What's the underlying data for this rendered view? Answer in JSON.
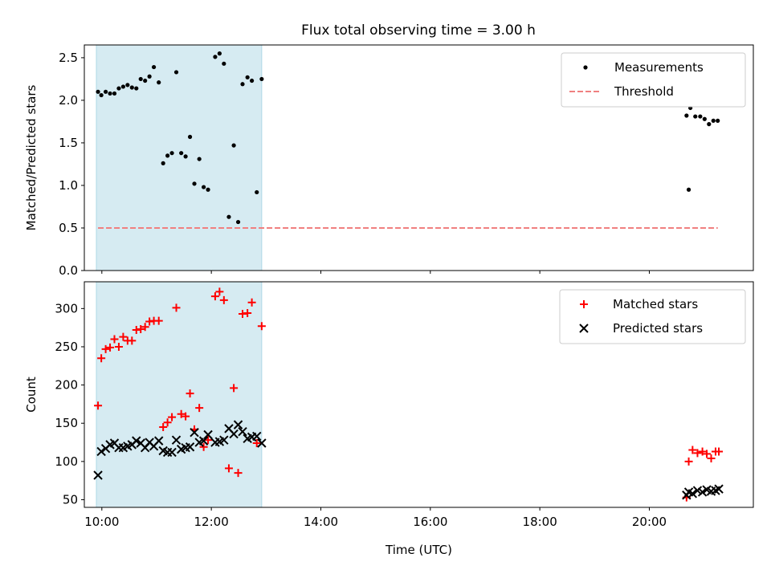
{
  "figure_title": "Flux total observing time = 3.00 h",
  "chart_data": [
    {
      "type": "scatter",
      "ylabel": "Matched/Predicted stars",
      "xlabel": "",
      "xlim_hours": [
        9.68,
        21.9
      ],
      "ylim": [
        0,
        2.65
      ],
      "y_ticks": [
        0.0,
        0.5,
        1.0,
        1.5,
        2.0,
        2.5
      ],
      "y_tick_labels": [
        "0.0",
        "0.5",
        "1.0",
        "1.5",
        "2.0",
        "2.5"
      ],
      "x_ticks_hours": [
        10,
        12,
        14,
        16,
        18,
        20
      ],
      "shaded_region_hours": [
        9.9,
        12.92
      ],
      "shaded_color": "#add8e6",
      "legend_position": "upper right",
      "series": [
        {
          "name": "Measurements",
          "marker": "dot",
          "color": "#000000",
          "points": [
            [
              9.93,
              2.1
            ],
            [
              9.99,
              2.06
            ],
            [
              10.07,
              2.1
            ],
            [
              10.15,
              2.08
            ],
            [
              10.23,
              2.08
            ],
            [
              10.31,
              2.14
            ],
            [
              10.39,
              2.16
            ],
            [
              10.47,
              2.18
            ],
            [
              10.55,
              2.15
            ],
            [
              10.63,
              2.14
            ],
            [
              10.71,
              2.25
            ],
            [
              10.79,
              2.23
            ],
            [
              10.87,
              2.28
            ],
            [
              10.95,
              2.39
            ],
            [
              11.04,
              2.21
            ],
            [
              11.12,
              1.26
            ],
            [
              11.2,
              1.35
            ],
            [
              11.28,
              1.38
            ],
            [
              11.36,
              2.33
            ],
            [
              11.45,
              1.38
            ],
            [
              11.53,
              1.34
            ],
            [
              11.61,
              1.57
            ],
            [
              11.69,
              1.02
            ],
            [
              11.78,
              1.31
            ],
            [
              11.86,
              0.98
            ],
            [
              11.94,
              0.95
            ],
            [
              12.07,
              2.51
            ],
            [
              12.15,
              2.55
            ],
            [
              12.23,
              2.43
            ],
            [
              12.32,
              0.63
            ],
            [
              12.41,
              1.47
            ],
            [
              12.49,
              0.57
            ],
            [
              12.57,
              2.19
            ],
            [
              12.66,
              2.27
            ],
            [
              12.74,
              2.23
            ],
            [
              12.83,
              0.92
            ],
            [
              12.92,
              2.25
            ],
            [
              20.68,
              1.82
            ],
            [
              20.72,
              0.95
            ],
            [
              20.75,
              1.91
            ],
            [
              20.84,
              1.81
            ],
            [
              20.93,
              1.81
            ],
            [
              21.01,
              1.78
            ],
            [
              21.09,
              1.72
            ],
            [
              21.17,
              1.76
            ],
            [
              21.25,
              1.76
            ]
          ]
        },
        {
          "name": "Threshold",
          "style": "dashed",
          "color": "#f08080",
          "points": [
            [
              9.93,
              0.5
            ],
            [
              21.25,
              0.5
            ]
          ]
        }
      ]
    },
    {
      "type": "scatter",
      "ylabel": "Count",
      "xlabel": "Time (UTC)",
      "xlim_hours": [
        9.68,
        21.9
      ],
      "ylim": [
        40,
        335
      ],
      "y_ticks": [
        50,
        100,
        150,
        200,
        250,
        300
      ],
      "y_tick_labels": [
        "50",
        "100",
        "150",
        "200",
        "250",
        "300"
      ],
      "x_ticks_hours": [
        10,
        12,
        14,
        16,
        18,
        20
      ],
      "x_tick_labels": [
        "10:00",
        "12:00",
        "14:00",
        "16:00",
        "18:00",
        "20:00"
      ],
      "shaded_region_hours": [
        9.9,
        12.92
      ],
      "shaded_color": "#add8e6",
      "legend_position": "upper right",
      "series": [
        {
          "name": "Matched stars",
          "marker": "plus",
          "color": "#ff0000",
          "points": [
            [
              9.93,
              173
            ],
            [
              9.99,
              235
            ],
            [
              10.07,
              247
            ],
            [
              10.15,
              249
            ],
            [
              10.23,
              260
            ],
            [
              10.31,
              250
            ],
            [
              10.39,
              263
            ],
            [
              10.47,
              258
            ],
            [
              10.55,
              258
            ],
            [
              10.63,
              272
            ],
            [
              10.71,
              273
            ],
            [
              10.79,
              276
            ],
            [
              10.87,
              283
            ],
            [
              10.95,
              284
            ],
            [
              11.04,
              284
            ],
            [
              11.12,
              145
            ],
            [
              11.2,
              151
            ],
            [
              11.28,
              158
            ],
            [
              11.36,
              301
            ],
            [
              11.45,
              162
            ],
            [
              11.53,
              159
            ],
            [
              11.61,
              189
            ],
            [
              11.69,
              142
            ],
            [
              11.78,
              170
            ],
            [
              11.86,
              119
            ],
            [
              11.94,
              128
            ],
            [
              12.07,
              316
            ],
            [
              12.15,
              322
            ],
            [
              12.23,
              311
            ],
            [
              12.32,
              91
            ],
            [
              12.41,
              196
            ],
            [
              12.49,
              85
            ],
            [
              12.57,
              293
            ],
            [
              12.66,
              294
            ],
            [
              12.74,
              308
            ],
            [
              12.83,
              124
            ],
            [
              12.92,
              277
            ],
            [
              20.68,
              53
            ],
            [
              20.72,
              100
            ],
            [
              20.79,
              115
            ],
            [
              20.88,
              111
            ],
            [
              20.97,
              113
            ],
            [
              21.05,
              110
            ],
            [
              21.13,
              104
            ],
            [
              21.21,
              113
            ],
            [
              21.27,
              113
            ]
          ]
        },
        {
          "name": "Predicted stars",
          "marker": "x",
          "color": "#000000",
          "points": [
            [
              9.93,
              82
            ],
            [
              9.99,
              113
            ],
            [
              10.07,
              117
            ],
            [
              10.15,
              122
            ],
            [
              10.23,
              124
            ],
            [
              10.31,
              118
            ],
            [
              10.39,
              118
            ],
            [
              10.47,
              120
            ],
            [
              10.55,
              122
            ],
            [
              10.63,
              127
            ],
            [
              10.71,
              124
            ],
            [
              10.79,
              118
            ],
            [
              10.87,
              125
            ],
            [
              10.95,
              120
            ],
            [
              11.04,
              127
            ],
            [
              11.12,
              114
            ],
            [
              11.2,
              112
            ],
            [
              11.28,
              112
            ],
            [
              11.36,
              128
            ],
            [
              11.45,
              116
            ],
            [
              11.53,
              118
            ],
            [
              11.61,
              119
            ],
            [
              11.69,
              138
            ],
            [
              11.78,
              125
            ],
            [
              11.86,
              127
            ],
            [
              11.94,
              135
            ],
            [
              12.07,
              125
            ],
            [
              12.15,
              126
            ],
            [
              12.23,
              128
            ],
            [
              12.32,
              143
            ],
            [
              12.41,
              136
            ],
            [
              12.49,
              148
            ],
            [
              12.57,
              139
            ],
            [
              12.66,
              130
            ],
            [
              12.74,
              132
            ],
            [
              12.83,
              133
            ],
            [
              12.92,
              124
            ],
            [
              20.68,
              56
            ],
            [
              20.72,
              60
            ],
            [
              20.79,
              58
            ],
            [
              20.88,
              62
            ],
            [
              20.97,
              60
            ],
            [
              21.05,
              63
            ],
            [
              21.13,
              61
            ],
            [
              21.21,
              62
            ],
            [
              21.27,
              64
            ]
          ]
        }
      ]
    }
  ]
}
